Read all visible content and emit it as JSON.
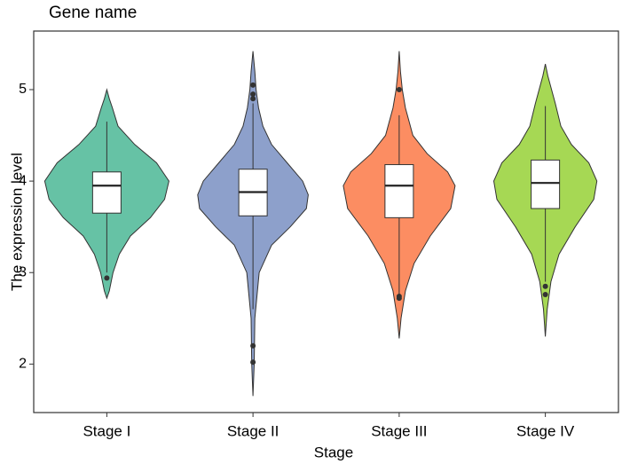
{
  "chart_data": {
    "type": "violin",
    "title": "Gene name",
    "x_label": "Stage",
    "y_label": "The expression level",
    "categories": [
      "Stage I",
      "Stage II",
      "Stage III",
      "Stage IV"
    ],
    "ylim": [
      1.47,
      5.64
    ],
    "yticks": [
      2,
      3,
      4,
      5
    ],
    "grid": false,
    "series": [
      {
        "color": "#66c2a5",
        "violin": {
          "y": [
            2.72,
            2.8,
            3.0,
            3.2,
            3.4,
            3.6,
            3.8,
            4.0,
            4.2,
            4.4,
            4.6,
            4.8,
            4.9,
            5.0
          ],
          "density": [
            0,
            0.04,
            0.1,
            0.2,
            0.38,
            0.7,
            0.93,
            1.0,
            0.8,
            0.45,
            0.18,
            0.09,
            0.04,
            0
          ]
        },
        "box": {
          "whisker_low": 3.0,
          "q1": 3.65,
          "median": 3.95,
          "q3": 4.1,
          "whisker_high": 4.65
        },
        "outliers": [
          2.94
        ]
      },
      {
        "color": "#8da0cb",
        "violin": {
          "y": [
            1.65,
            2.0,
            2.5,
            3.0,
            3.3,
            3.5,
            3.7,
            3.85,
            4.0,
            4.2,
            4.4,
            4.6,
            4.8,
            5.0,
            5.2,
            5.42
          ],
          "density": [
            0,
            0.02,
            0.03,
            0.1,
            0.3,
            0.6,
            0.86,
            0.89,
            0.8,
            0.55,
            0.3,
            0.16,
            0.09,
            0.05,
            0.03,
            0
          ]
        },
        "box": {
          "whisker_low": 2.6,
          "q1": 3.62,
          "median": 3.88,
          "q3": 4.13,
          "whisker_high": 4.85
        },
        "outliers": [
          2.02,
          2.2,
          4.9,
          4.95,
          5.05
        ]
      },
      {
        "color": "#fc8d62",
        "violin": {
          "y": [
            2.28,
            2.5,
            2.8,
            3.1,
            3.4,
            3.7,
            3.95,
            4.1,
            4.3,
            4.5,
            4.8,
            5.0,
            5.2,
            5.42
          ],
          "density": [
            0,
            0.03,
            0.1,
            0.24,
            0.5,
            0.83,
            0.9,
            0.78,
            0.45,
            0.22,
            0.1,
            0.05,
            0.02,
            0
          ]
        },
        "box": {
          "whisker_low": 2.75,
          "q1": 3.6,
          "median": 3.95,
          "q3": 4.18,
          "whisker_high": 4.72
        },
        "outliers": [
          2.72,
          2.74,
          5.0
        ]
      },
      {
        "color": "#a6d854",
        "violin": {
          "y": [
            2.3,
            2.6,
            2.9,
            3.2,
            3.5,
            3.8,
            4.0,
            4.2,
            4.4,
            4.6,
            4.85,
            5.0,
            5.15,
            5.28
          ],
          "density": [
            0,
            0.03,
            0.09,
            0.22,
            0.48,
            0.78,
            0.83,
            0.7,
            0.42,
            0.25,
            0.16,
            0.1,
            0.04,
            0
          ]
        },
        "box": {
          "whisker_low": 2.9,
          "q1": 3.7,
          "median": 3.98,
          "q3": 4.23,
          "whisker_high": 4.82
        },
        "outliers": [
          2.76,
          2.85
        ]
      }
    ]
  }
}
